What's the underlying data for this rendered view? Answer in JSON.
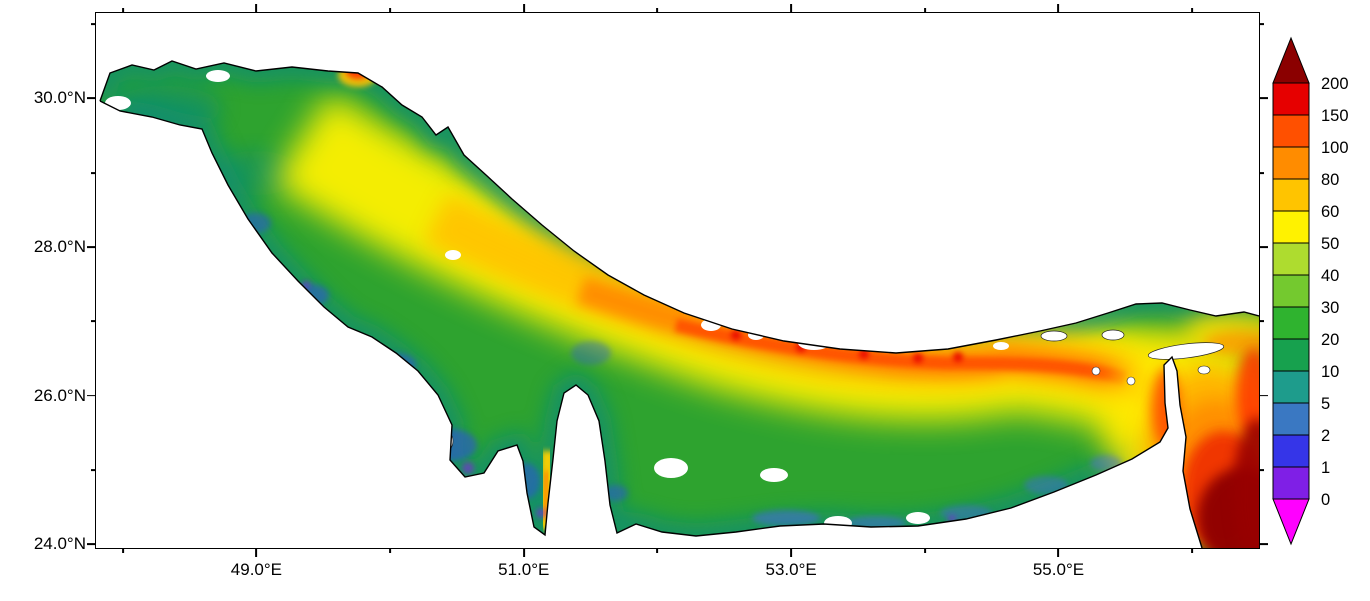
{
  "figure": {
    "background": "#FFFFFF",
    "region_depicted": "Persian Gulf"
  },
  "chart_data": {
    "type": "heatmap",
    "title": "",
    "xlabel": "",
    "ylabel": "",
    "grid": false,
    "legend_position": "right",
    "x_axis": {
      "range": [
        47.8,
        56.5
      ],
      "tick_values": [
        49,
        51,
        53,
        55
      ],
      "tick_labels": [
        "49.0°E",
        "51.0°E",
        "53.0°E",
        "55.0°E"
      ],
      "minor_tick_values": [
        48,
        50,
        52,
        54,
        56
      ]
    },
    "y_axis": {
      "range": [
        23.95,
        31.15
      ],
      "tick_values": [
        24,
        26,
        28,
        30
      ],
      "tick_labels": [
        "24.0°N",
        "26.0°N",
        "28.0°N",
        "30.0°N"
      ],
      "minor_tick_values": [
        25,
        27,
        29,
        31
      ]
    },
    "colorbar": {
      "orientation": "vertical",
      "boundary_values": [
        0,
        1,
        2,
        5,
        10,
        20,
        30,
        40,
        50,
        60,
        80,
        100,
        150,
        200
      ],
      "boundary_labels": [
        "0",
        "1",
        "2",
        "5",
        "10",
        "20",
        "30",
        "40",
        "50",
        "60",
        "80",
        "100",
        "150",
        "200"
      ],
      "segment_colors_low_to_high": [
        "#7F1FE6",
        "#3535E8",
        "#3A78C2",
        "#1E9C8C",
        "#17A14E",
        "#2FB32F",
        "#74C92F",
        "#AEDC2F",
        "#FFF200",
        "#FFC400",
        "#FF8C00",
        "#FF5000",
        "#E60000"
      ],
      "under_arrow_color": "#FF00FF",
      "over_arrow_color": "#8B0000",
      "outline_color": "#000000"
    },
    "map_colors": {
      "land": "#FFFFFF",
      "coast_outline": "#000000",
      "base_water": "#2EA32F",
      "coastal_shallow": "#0E8C74",
      "mid_band_yellow": "#FFF200",
      "deep_band_orange": "#FF8C00",
      "deepest_red": "#E60000",
      "gulf_of_oman_core": "#8B0000"
    }
  }
}
